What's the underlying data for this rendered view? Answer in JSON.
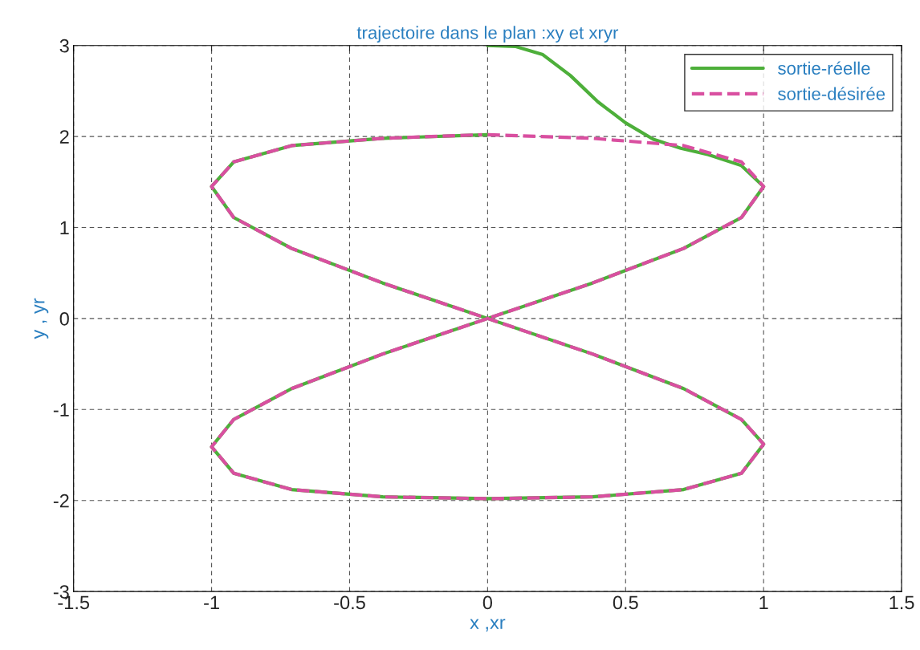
{
  "chart_data": {
    "type": "line",
    "title": "trajectoire dans le plan :xy et xryr",
    "xlabel": "x ,xr",
    "ylabel": "y , yr",
    "xlim": [
      -1.5,
      1.5
    ],
    "xticks": [
      -1.5,
      -1,
      -0.5,
      0,
      0.5,
      1,
      1.5
    ],
    "ylim": [
      -3,
      3
    ],
    "yticks": [
      -3,
      -2,
      -1,
      0,
      1,
      2,
      3
    ],
    "grid": true,
    "legend": "top right",
    "series": [
      {
        "name": "sortie-réelle",
        "color": "#4daf3a",
        "line_style": "solid",
        "x": [
          0,
          0.1,
          0.2,
          0.3,
          0.4,
          0.5,
          0.6,
          0.7,
          0.8,
          0.92,
          1,
          0.92,
          0.71,
          0.38,
          0,
          -0.38,
          -0.71,
          -0.92,
          -1,
          -0.92,
          -0.71,
          -0.38,
          0,
          0.38,
          0.71,
          0.92,
          1,
          0.92,
          0.71,
          0.38,
          0,
          -0.38,
          -0.71,
          -0.92,
          -1,
          -0.92,
          -0.71,
          -0.38,
          0
        ],
        "values": [
          3.0,
          2.99,
          2.9,
          2.67,
          2.38,
          2.15,
          1.97,
          1.87,
          1.8,
          1.68,
          1.45,
          1.11,
          0.77,
          0.39,
          0,
          -0.39,
          -0.77,
          -1.11,
          -1.41,
          -1.7,
          -1.88,
          -1.96,
          -1.98,
          -1.96,
          -1.88,
          -1.7,
          -1.38,
          -1.11,
          -0.77,
          -0.39,
          0,
          0.39,
          0.77,
          1.11,
          1.45,
          1.72,
          1.9,
          1.98,
          2.02
        ]
      },
      {
        "name": "sortie-désirée",
        "color": "#d94fa0",
        "line_style": "dashed",
        "x": [
          0,
          0.38,
          0.71,
          0.92,
          1,
          0.92,
          0.71,
          0.38,
          0,
          -0.38,
          -0.71,
          -0.92,
          -1,
          -0.92,
          -0.71,
          -0.38,
          0,
          0.38,
          0.71,
          0.92,
          1,
          0.92,
          0.71,
          0.38,
          0,
          -0.38,
          -0.71,
          -0.92,
          -1,
          -0.92,
          -0.71,
          -0.38,
          -0.02
        ],
        "values": [
          2.02,
          1.98,
          1.9,
          1.72,
          1.45,
          1.11,
          0.77,
          0.39,
          0,
          -0.39,
          -0.77,
          -1.11,
          -1.41,
          -1.7,
          -1.88,
          -1.96,
          -1.98,
          -1.96,
          -1.88,
          -1.7,
          -1.38,
          -1.11,
          -0.77,
          -0.39,
          0,
          0.39,
          0.77,
          1.11,
          1.45,
          1.72,
          1.9,
          1.98,
          2.02
        ]
      }
    ]
  }
}
